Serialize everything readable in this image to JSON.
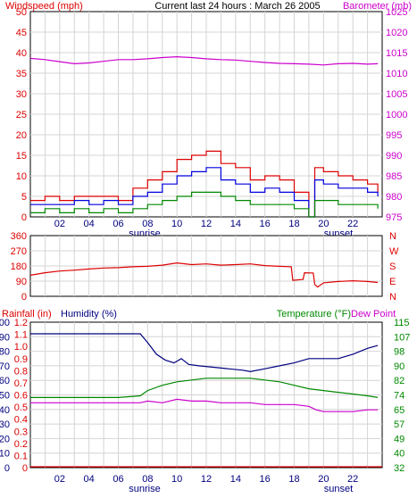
{
  "colors": {
    "red": "#dd0000",
    "blue": "#0000dd",
    "green": "#008800",
    "magenta": "#cc00cc",
    "navy": "#000080",
    "grid": "#d4d4d4",
    "plot_bg": "#ffffff"
  },
  "chart_data": [
    {
      "type": "line",
      "title": "Current last 24 hours : March 26 2005",
      "left_axis_label": "Windspeed (mph)",
      "right_axis_label": "Barometer (mb)",
      "left_ylim": [
        0,
        50
      ],
      "left_ticks": [
        "0",
        "5",
        "10",
        "15",
        "20",
        "25",
        "30",
        "35",
        "40",
        "45",
        "50"
      ],
      "right_ylim": [
        975,
        1025
      ],
      "right_ticks": [
        "975",
        "980",
        "985",
        "990",
        "995",
        "1000",
        "1005",
        "1010",
        "1015",
        "1020",
        "1025"
      ],
      "x_ticks": [
        "02",
        "04",
        "06",
        "08",
        "10",
        "12",
        "14",
        "16",
        "18",
        "20",
        "22"
      ],
      "x_range": [
        0,
        24
      ],
      "sunrise_label": "sunrise",
      "sunset_label": "sunset",
      "sunrise_hour": 7.0,
      "sunset_hour": 19.5,
      "grid": true,
      "series": [
        {
          "values": [
            [
              0,
              1013.6
            ],
            [
              1,
              1013.3
            ],
            [
              2,
              1012.8
            ],
            [
              3,
              1012.3
            ],
            [
              4,
              1012.5
            ],
            [
              5,
              1012.9
            ],
            [
              6,
              1013.3
            ],
            [
              7,
              1013.3
            ],
            [
              8,
              1013.5
            ],
            [
              9,
              1013.8
            ],
            [
              10,
              1014.0
            ],
            [
              11,
              1013.8
            ],
            [
              12,
              1013.5
            ],
            [
              13,
              1013.3
            ],
            [
              14,
              1013.2
            ],
            [
              15,
              1012.9
            ],
            [
              16,
              1012.6
            ],
            [
              17,
              1012.4
            ],
            [
              18,
              1012.3
            ],
            [
              19,
              1012.2
            ],
            [
              20,
              1012.0
            ],
            [
              21,
              1012.3
            ],
            [
              22,
              1012.4
            ],
            [
              23,
              1012.2
            ],
            [
              23.7,
              1012.3
            ]
          ]
        },
        {
          "values": [
            [
              0,
              4
            ],
            [
              1,
              5
            ],
            [
              2,
              4
            ],
            [
              3,
              5
            ],
            [
              4,
              5
            ],
            [
              5,
              5
            ],
            [
              6,
              4
            ],
            [
              7,
              7
            ],
            [
              8,
              9
            ],
            [
              9,
              11
            ],
            [
              10,
              14
            ],
            [
              11,
              15
            ],
            [
              12,
              16
            ],
            [
              13,
              13
            ],
            [
              14,
              12
            ],
            [
              15,
              9
            ],
            [
              16,
              10
            ],
            [
              17,
              9
            ],
            [
              18,
              6
            ],
            [
              19,
              0
            ],
            [
              19.4,
              12
            ],
            [
              20,
              11
            ],
            [
              21,
              10
            ],
            [
              22,
              9
            ],
            [
              23,
              8
            ],
            [
              23.7,
              6
            ]
          ]
        },
        {
          "values": [
            [
              0,
              3
            ],
            [
              1,
              3
            ],
            [
              2,
              3
            ],
            [
              3,
              4
            ],
            [
              4,
              3
            ],
            [
              5,
              4
            ],
            [
              6,
              3
            ],
            [
              7,
              5
            ],
            [
              8,
              6
            ],
            [
              9,
              8
            ],
            [
              10,
              10
            ],
            [
              11,
              11
            ],
            [
              12,
              12
            ],
            [
              13,
              9
            ],
            [
              14,
              8
            ],
            [
              15,
              6
            ],
            [
              16,
              7
            ],
            [
              17,
              6
            ],
            [
              18,
              4
            ],
            [
              19,
              0
            ],
            [
              19.4,
              9
            ],
            [
              20,
              8
            ],
            [
              21,
              7
            ],
            [
              22,
              7
            ],
            [
              23,
              6
            ],
            [
              23.7,
              5
            ]
          ]
        },
        {
          "values": [
            [
              0,
              1
            ],
            [
              1,
              2
            ],
            [
              2,
              1
            ],
            [
              3,
              2
            ],
            [
              4,
              1
            ],
            [
              5,
              2
            ],
            [
              6,
              1
            ],
            [
              7,
              2
            ],
            [
              8,
              3
            ],
            [
              9,
              4
            ],
            [
              10,
              5
            ],
            [
              11,
              6
            ],
            [
              12,
              6
            ],
            [
              13,
              5
            ],
            [
              14,
              4
            ],
            [
              15,
              3
            ],
            [
              16,
              3
            ],
            [
              17,
              3
            ],
            [
              18,
              2
            ],
            [
              19,
              0
            ],
            [
              19.4,
              4
            ],
            [
              20,
              4
            ],
            [
              21,
              3
            ],
            [
              22,
              3
            ],
            [
              23,
              3
            ],
            [
              23.7,
              2
            ]
          ]
        }
      ]
    },
    {
      "type": "line",
      "left_ylim": [
        0,
        360
      ],
      "left_ticks": [
        "0",
        "90",
        "180",
        "270",
        "360"
      ],
      "right_ticks": [
        "N",
        "E",
        "S",
        "W",
        "N"
      ],
      "x_range": [
        0,
        24
      ],
      "grid": true,
      "series": [
        {
          "values": [
            [
              0,
              125
            ],
            [
              1,
              140
            ],
            [
              2,
              150
            ],
            [
              3,
              155
            ],
            [
              4,
              162
            ],
            [
              5,
              168
            ],
            [
              6,
              170
            ],
            [
              7,
              175
            ],
            [
              8,
              178
            ],
            [
              9,
              185
            ],
            [
              10,
              198
            ],
            [
              11,
              188
            ],
            [
              12,
              192
            ],
            [
              13,
              185
            ],
            [
              14,
              188
            ],
            [
              15,
              192
            ],
            [
              16,
              182
            ],
            [
              17,
              178
            ],
            [
              17.8,
              175
            ],
            [
              17.9,
              95
            ],
            [
              18.6,
              100
            ],
            [
              18.7,
              140
            ],
            [
              19.3,
              138
            ],
            [
              19.4,
              70
            ],
            [
              19.6,
              55
            ],
            [
              20,
              80
            ],
            [
              21,
              88
            ],
            [
              22,
              92
            ],
            [
              23,
              88
            ],
            [
              23.7,
              82
            ]
          ]
        }
      ]
    },
    {
      "type": "line",
      "rain_axis_label": "Rainfall (in)",
      "humidity_axis_label": "Humidity (%)",
      "temperature_axis_label": "Temperature (°F)",
      "dewpoint_axis_label": "Dew Point",
      "rain_ylim": [
        0,
        1.2
      ],
      "rain_ticks": [
        "0",
        "0.1",
        "0.2",
        "0.3",
        "0.4",
        "0.5",
        "0.6",
        "0.7",
        "0.8",
        "0.9",
        "1.0",
        "1.1",
        "1.2"
      ],
      "humidity_ylim": [
        0,
        100
      ],
      "humidity_ticks": [
        "0",
        "10",
        "20",
        "30",
        "40",
        "50",
        "60",
        "70",
        "80",
        "90",
        "100"
      ],
      "temp_ylim": [
        32,
        115
      ],
      "temp_ticks": [
        "32",
        "40",
        "49",
        "57",
        "65",
        "74",
        "82",
        "90",
        "98",
        "107",
        "115"
      ],
      "x_ticks": [
        "02",
        "04",
        "06",
        "08",
        "10",
        "12",
        "14",
        "16",
        "18",
        "20",
        "22"
      ],
      "x_range": [
        0,
        24
      ],
      "sunrise_label": "sunrise",
      "sunset_label": "sunset",
      "sunrise_hour": 7.0,
      "sunset_hour": 19.5,
      "grid": true,
      "series": [
        {
          "values": [
            [
              0,
              92
            ],
            [
              2,
              92
            ],
            [
              4,
              92
            ],
            [
              6,
              92
            ],
            [
              7.5,
              92
            ],
            [
              8,
              86
            ],
            [
              8.6,
              78
            ],
            [
              9.2,
              74
            ],
            [
              9.8,
              72
            ],
            [
              10.3,
              75
            ],
            [
              10.8,
              71
            ],
            [
              11.5,
              70
            ],
            [
              12.5,
              69
            ],
            [
              13.5,
              68
            ],
            [
              14.5,
              67
            ],
            [
              15,
              66
            ],
            [
              16,
              68
            ],
            [
              17,
              70
            ],
            [
              18,
              72
            ],
            [
              19,
              75
            ],
            [
              20,
              75
            ],
            [
              21,
              75
            ],
            [
              22,
              78
            ],
            [
              23,
              82
            ],
            [
              23.7,
              84
            ]
          ]
        },
        {
          "values": [
            [
              0,
              72
            ],
            [
              2,
              72
            ],
            [
              4,
              72
            ],
            [
              6,
              72
            ],
            [
              7.5,
              73
            ],
            [
              8,
              76
            ],
            [
              9,
              79
            ],
            [
              10,
              81
            ],
            [
              11,
              82
            ],
            [
              12,
              83
            ],
            [
              13,
              83
            ],
            [
              14,
              83
            ],
            [
              15,
              83
            ],
            [
              16,
              82
            ],
            [
              17,
              81
            ],
            [
              18,
              79
            ],
            [
              19,
              77
            ],
            [
              20,
              76
            ],
            [
              21,
              75
            ],
            [
              22,
              74
            ],
            [
              23,
              73
            ],
            [
              23.7,
              72
            ]
          ]
        },
        {
          "values": [
            [
              0,
              69
            ],
            [
              2,
              69
            ],
            [
              4,
              69
            ],
            [
              6,
              69
            ],
            [
              7.5,
              69
            ],
            [
              8,
              70
            ],
            [
              9,
              69
            ],
            [
              10,
              71
            ],
            [
              11,
              70
            ],
            [
              12,
              70
            ],
            [
              13,
              69
            ],
            [
              14,
              69
            ],
            [
              15,
              69
            ],
            [
              16,
              68
            ],
            [
              17,
              68
            ],
            [
              18,
              68
            ],
            [
              19,
              67
            ],
            [
              19.5,
              65
            ],
            [
              20,
              64
            ],
            [
              21,
              64
            ],
            [
              22,
              64
            ],
            [
              23,
              65
            ],
            [
              23.7,
              65
            ]
          ]
        },
        {
          "values": [
            [
              0,
              0
            ],
            [
              24,
              0
            ]
          ]
        }
      ]
    }
  ]
}
